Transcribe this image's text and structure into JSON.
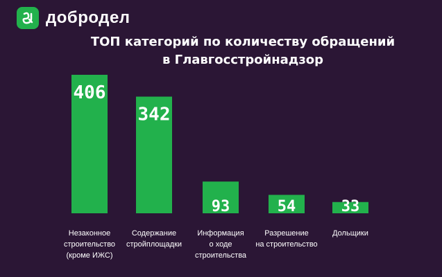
{
  "brand": {
    "name": "добродел",
    "color": "#22b14c",
    "icon": "dobrodel-logo-icon"
  },
  "chart_data": {
    "type": "bar",
    "title_lines": [
      "ТОП категорий по количеству обращений",
      "в Главгосстройнадзор"
    ],
    "categories": [
      [
        "Незаконное",
        "строительство",
        "(кроме ИЖС)"
      ],
      [
        "Содержание",
        "стройплощадки"
      ],
      [
        "Информация",
        "о ходе",
        "строительства"
      ],
      [
        "Разрешение",
        "на строительство"
      ],
      [
        "Дольщики"
      ]
    ],
    "values": [
      406,
      342,
      93,
      54,
      33
    ],
    "bar_color": "#22b14c",
    "value_label_color": "#ffffff",
    "background": "#2b1635",
    "grid": false,
    "legend": false
  }
}
